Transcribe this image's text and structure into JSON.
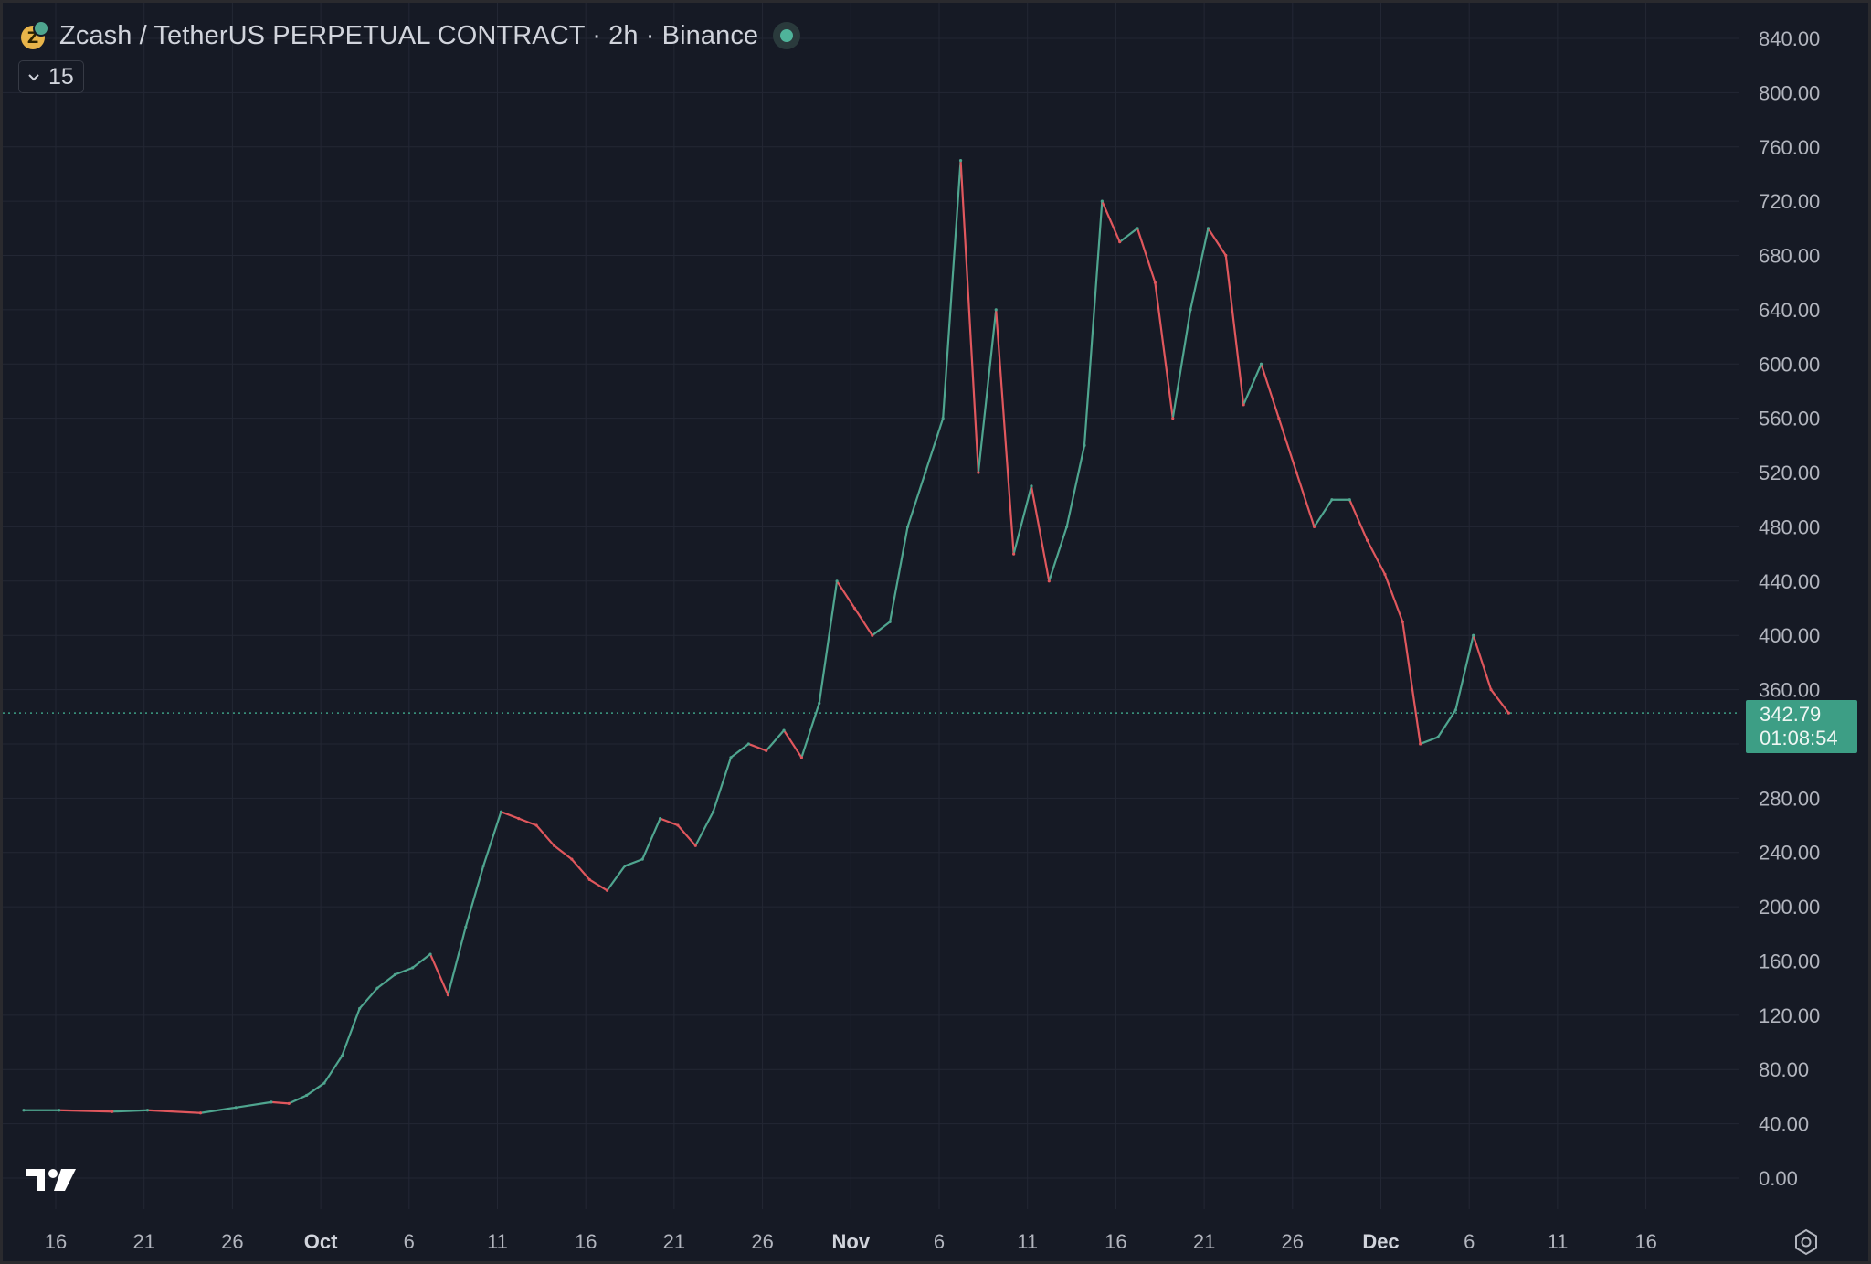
{
  "header": {
    "title": "Zcash / TetherUS PERPETUAL CONTRACT · 2h · Binance",
    "collapse_count": "15",
    "live_indicator_color": "#4fb39a"
  },
  "last_price": {
    "value": "342.79",
    "countdown": "01:08:54",
    "color": "#3d9e85"
  },
  "colors": {
    "background": "#161a25",
    "grid": "#232734",
    "up": "#4fa58f",
    "down": "#e0575d",
    "axis_text": "#b2b5be"
  },
  "chart_data": {
    "type": "line",
    "title": "Zcash / TetherUS PERPETUAL CONTRACT · 2h · Binance",
    "ylim": [
      0,
      840
    ],
    "y_ticks": [
      "840.00",
      "800.00",
      "760.00",
      "720.00",
      "680.00",
      "640.00",
      "600.00",
      "560.00",
      "520.00",
      "480.00",
      "440.00",
      "400.00",
      "360.00",
      "320.00",
      "280.00",
      "240.00",
      "200.00",
      "160.00",
      "120.00",
      "80.00",
      "40.00",
      "0.00"
    ],
    "x_ticks": [
      {
        "label": "16",
        "bold": false
      },
      {
        "label": "21",
        "bold": false
      },
      {
        "label": "26",
        "bold": false
      },
      {
        "label": "Oct",
        "bold": true
      },
      {
        "label": "6",
        "bold": false
      },
      {
        "label": "11",
        "bold": false
      },
      {
        "label": "16",
        "bold": false
      },
      {
        "label": "21",
        "bold": false
      },
      {
        "label": "26",
        "bold": false
      },
      {
        "label": "Nov",
        "bold": true
      },
      {
        "label": "6",
        "bold": false
      },
      {
        "label": "11",
        "bold": false
      },
      {
        "label": "16",
        "bold": false
      },
      {
        "label": "21",
        "bold": false
      },
      {
        "label": "26",
        "bold": false
      },
      {
        "label": "Dec",
        "bold": true
      },
      {
        "label": "6",
        "bold": false
      },
      {
        "label": "11",
        "bold": false
      },
      {
        "label": "16",
        "bold": false
      }
    ],
    "x_domain": [
      "2025-09-14",
      "2025-12-20"
    ],
    "series": [
      {
        "x": [
          "2025-09-14",
          "2025-09-16",
          "2025-09-19",
          "2025-09-21",
          "2025-09-24",
          "2025-09-26",
          "2025-09-28",
          "2025-09-29",
          "2025-09-30",
          "2025-10-01",
          "2025-10-02",
          "2025-10-03",
          "2025-10-04",
          "2025-10-05",
          "2025-10-06",
          "2025-10-07",
          "2025-10-08",
          "2025-10-09",
          "2025-10-10",
          "2025-10-11",
          "2025-10-12",
          "2025-10-13",
          "2025-10-14",
          "2025-10-15",
          "2025-10-16",
          "2025-10-17",
          "2025-10-18",
          "2025-10-19",
          "2025-10-20",
          "2025-10-21",
          "2025-10-22",
          "2025-10-23",
          "2025-10-24",
          "2025-10-25",
          "2025-10-26",
          "2025-10-27",
          "2025-10-28",
          "2025-10-29",
          "2025-10-30",
          "2025-10-31",
          "2025-11-01",
          "2025-11-02",
          "2025-11-03",
          "2025-11-04",
          "2025-11-05",
          "2025-11-06",
          "2025-11-07",
          "2025-11-08",
          "2025-11-09",
          "2025-11-10",
          "2025-11-11",
          "2025-11-12",
          "2025-11-13",
          "2025-11-14",
          "2025-11-15",
          "2025-11-16",
          "2025-11-17",
          "2025-11-18",
          "2025-11-19",
          "2025-11-20",
          "2025-11-21",
          "2025-11-22",
          "2025-11-23",
          "2025-11-24",
          "2025-11-25",
          "2025-11-26",
          "2025-11-27",
          "2025-11-28",
          "2025-11-29",
          "2025-11-30",
          "2025-12-01",
          "2025-12-02",
          "2025-12-03",
          "2025-12-04",
          "2025-12-05",
          "2025-12-06",
          "2025-12-07"
        ],
        "values": [
          50,
          50,
          49,
          50,
          48,
          52,
          56,
          55,
          61,
          70,
          90,
          125,
          140,
          150,
          155,
          165,
          135,
          185,
          230,
          270,
          265,
          260,
          245,
          235,
          220,
          212,
          230,
          235,
          265,
          260,
          245,
          270,
          310,
          320,
          315,
          330,
          310,
          350,
          440,
          420,
          400,
          410,
          480,
          520,
          560,
          750,
          520,
          640,
          460,
          510,
          440,
          480,
          540,
          720,
          690,
          700,
          660,
          560,
          640,
          700,
          680,
          570,
          600,
          560,
          520,
          480,
          500,
          500,
          470,
          445,
          410,
          320,
          325,
          345,
          400,
          360,
          342.79
        ]
      }
    ],
    "grid": true
  }
}
